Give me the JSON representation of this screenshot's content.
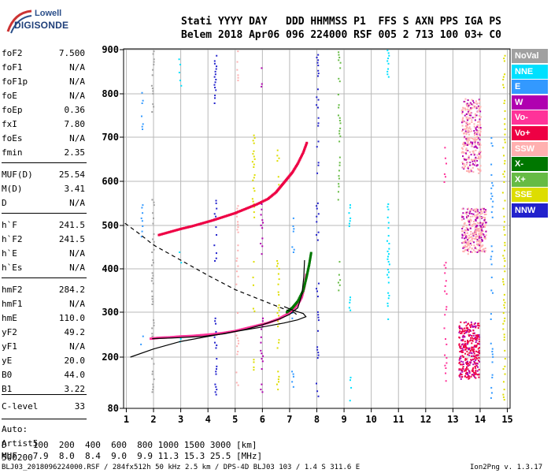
{
  "logo": {
    "line1": "Lowell",
    "line2": "DIGISONDE"
  },
  "header": {
    "line1": "Stati YYYY DAY   DDD HHMMSS P1  FFS S AXN PPS IGA PS",
    "line2": "Belem 2018 Apr06 096 224000 RSF 005 2 713 100 03+ C0"
  },
  "params": [
    {
      "k": "foF2",
      "v": "7.500"
    },
    {
      "k": "foF1",
      "v": "N/A"
    },
    {
      "k": "foF1p",
      "v": "N/A"
    },
    {
      "k": "foE",
      "v": "N/A"
    },
    {
      "k": "foEp",
      "v": "0.36"
    },
    {
      "k": "fxI",
      "v": "7.80"
    },
    {
      "k": "foEs",
      "v": "N/A"
    },
    {
      "k": "fmin",
      "v": "2.35"
    },
    {
      "k": "MUF(D)",
      "v": "25.54"
    },
    {
      "k": "M(D)",
      "v": "3.41"
    },
    {
      "k": "D",
      "v": "N/A"
    },
    {
      "k": "h`F",
      "v": "241.5"
    },
    {
      "k": "h`F2",
      "v": "241.5"
    },
    {
      "k": "h`E",
      "v": "N/A"
    },
    {
      "k": "h`Es",
      "v": "N/A"
    },
    {
      "k": "hmF2",
      "v": "284.2"
    },
    {
      "k": "hmF1",
      "v": "N/A"
    },
    {
      "k": "hmE",
      "v": "110.0"
    },
    {
      "k": "yF2",
      "v": "49.2"
    },
    {
      "k": "yF1",
      "v": "N/A"
    },
    {
      "k": "yE",
      "v": "20.0"
    },
    {
      "k": "B0",
      "v": "44.0"
    },
    {
      "k": "B1",
      "v": "3.22"
    },
    {
      "k": "C-level",
      "v": "33"
    }
  ],
  "auto": {
    "line1": "Auto:",
    "line2": "Artist5",
    "line3": "500200"
  },
  "legend": [
    {
      "label": "NoVal",
      "color": "#a0a0a0"
    },
    {
      "label": "NNE",
      "color": "#00e0ff"
    },
    {
      "label": "E",
      "color": "#3399ff"
    },
    {
      "label": "W",
      "color": "#b000b0"
    },
    {
      "label": "Vo-",
      "color": "#ff3399"
    },
    {
      "label": "Vo+",
      "color": "#ee0044"
    },
    {
      "label": "SSW",
      "color": "#ffb0b0"
    },
    {
      "label": "X-",
      "color": "#007700"
    },
    {
      "label": "X+",
      "color": "#66bb44"
    },
    {
      "label": "SSE",
      "color": "#dddd00"
    },
    {
      "label": "NNW",
      "color": "#2222cc"
    }
  ],
  "footer": {
    "d_row": "D     100  200  400  600  800 1000 1500 3000 [km]",
    "muf_row": "MUF   7.9  8.0  8.4  9.0  9.9 11.3 15.3 25.5 [MHz]",
    "file_info": "BLJ03_2018096224000.RSF / 284fx512h 50 kHz 2.5 km / DPS-4D BLJ03 103 / 1.4 S 311.6 E",
    "version": "Ion2Png v. 1.3.17"
  },
  "chart_data": {
    "type": "scatter",
    "xlim": [
      0.9,
      15.1
    ],
    "ylim": [
      80,
      900
    ],
    "x_ticks": [
      "1",
      "2",
      "3",
      "4",
      "5",
      "6",
      "7",
      "8",
      "9",
      "10",
      "11",
      "12",
      "13",
      "14",
      "15"
    ],
    "y_ticks": [
      "80",
      "200",
      "300",
      "400",
      "500",
      "600",
      "700",
      "800",
      "900"
    ],
    "grid": true,
    "traces": [
      {
        "name": "o-trace",
        "color": "#ff3399",
        "points": [
          [
            1.9,
            241
          ],
          [
            2.2,
            243
          ],
          [
            2.6,
            244
          ],
          [
            3.0,
            246
          ],
          [
            3.4,
            247
          ],
          [
            3.8,
            249
          ],
          [
            4.2,
            251
          ],
          [
            4.6,
            254
          ],
          [
            5.0,
            258
          ],
          [
            5.4,
            264
          ],
          [
            5.8,
            270
          ],
          [
            6.2,
            276
          ],
          [
            6.6,
            285
          ],
          [
            6.9,
            295
          ],
          [
            7.1,
            305
          ],
          [
            7.3,
            318
          ],
          [
            7.45,
            335
          ],
          [
            7.55,
            360
          ],
          [
            7.62,
            390
          ]
        ]
      },
      {
        "name": "x-trace",
        "color": "#007700",
        "points": [
          [
            6.9,
            300
          ],
          [
            7.1,
            310
          ],
          [
            7.3,
            325
          ],
          [
            7.5,
            350
          ],
          [
            7.62,
            380
          ],
          [
            7.72,
            410
          ],
          [
            7.8,
            440
          ]
        ]
      },
      {
        "name": "o-trace-2hop",
        "color": "#ee0044",
        "points": [
          [
            2.2,
            478
          ],
          [
            2.6,
            485
          ],
          [
            3.0,
            492
          ],
          [
            3.4,
            498
          ],
          [
            3.8,
            505
          ],
          [
            4.2,
            512
          ],
          [
            4.6,
            520
          ],
          [
            5.0,
            528
          ],
          [
            5.4,
            538
          ],
          [
            5.8,
            548
          ],
          [
            6.2,
            560
          ],
          [
            6.5,
            575
          ],
          [
            6.7,
            590
          ],
          [
            6.9,
            605
          ],
          [
            7.1,
            620
          ],
          [
            7.3,
            640
          ],
          [
            7.5,
            665
          ],
          [
            7.65,
            690
          ]
        ]
      }
    ],
    "profile_curves": [
      {
        "name": "profile-solid-upper",
        "style": "solid",
        "points": [
          [
            1.15,
            200
          ],
          [
            2.0,
            218
          ],
          [
            3.0,
            235
          ],
          [
            4.0,
            246
          ],
          [
            5.0,
            257
          ],
          [
            6.0,
            267
          ],
          [
            6.8,
            276
          ],
          [
            7.3,
            283
          ],
          [
            7.6,
            290
          ],
          [
            7.5,
            297
          ],
          [
            7.1,
            305
          ],
          [
            6.8,
            313
          ]
        ]
      },
      {
        "name": "profile-solid-lower",
        "style": "solid",
        "points": [
          [
            1.95,
            241
          ],
          [
            2.8,
            243
          ],
          [
            3.8,
            246
          ],
          [
            4.6,
            252
          ],
          [
            5.4,
            262
          ],
          [
            6.0,
            272
          ],
          [
            6.6,
            284
          ],
          [
            7.0,
            295
          ],
          [
            7.3,
            310
          ],
          [
            7.45,
            340
          ],
          [
            7.52,
            380
          ],
          [
            7.55,
            420
          ]
        ]
      },
      {
        "name": "profile-dashed",
        "style": "dashed",
        "points": [
          [
            0.95,
            505
          ],
          [
            1.5,
            480
          ],
          [
            2.0,
            455
          ],
          [
            3.0,
            420
          ],
          [
            4.0,
            385
          ],
          [
            5.0,
            352
          ],
          [
            5.8,
            332
          ],
          [
            6.4,
            317
          ],
          [
            6.9,
            305
          ],
          [
            7.2,
            298
          ],
          [
            7.3,
            292
          ]
        ]
      }
    ],
    "scattered_columns": [
      {
        "x": 1.55,
        "y": [
          [
            470,
            560
          ],
          [
            720,
            820
          ],
          [
            230,
            300
          ]
        ],
        "color": "#3399ff"
      },
      {
        "x": 1.95,
        "y": [
          [
            120,
            200
          ],
          [
            230,
            560
          ],
          [
            760,
            900
          ]
        ],
        "color": "#a0a0a0"
      },
      {
        "x": 2.95,
        "y": [
          [
            380,
            440
          ],
          [
            230,
            270
          ],
          [
            820,
            900
          ]
        ],
        "color": "#00e0ff"
      },
      {
        "x": 4.25,
        "y": [
          [
            90,
            300
          ],
          [
            420,
            560
          ],
          [
            780,
            900
          ]
        ],
        "color": "#2222cc"
      },
      {
        "x": 5.05,
        "y": [
          [
            130,
            260
          ],
          [
            300,
            560
          ],
          [
            820,
            900
          ]
        ],
        "color": "#ffb0b0"
      },
      {
        "x": 5.65,
        "y": [
          [
            160,
            200
          ],
          [
            280,
            420
          ],
          [
            520,
            740
          ]
        ],
        "color": "#dddd00"
      },
      {
        "x": 5.95,
        "y": [
          [
            120,
            300
          ],
          [
            430,
            560
          ],
          [
            800,
            870
          ]
        ],
        "color": "#b000b0"
      },
      {
        "x": 6.55,
        "y": [
          [
            120,
            420
          ],
          [
            540,
            700
          ]
        ],
        "color": "#dddd00"
      },
      {
        "x": 7.1,
        "y": [
          [
            120,
            200
          ],
          [
            270,
            300
          ],
          [
            440,
            520
          ]
        ],
        "color": "#3399ff"
      },
      {
        "x": 8.0,
        "y": [
          [
            110,
            380
          ],
          [
            450,
            560
          ],
          [
            620,
            900
          ]
        ],
        "color": "#2222cc"
      },
      {
        "x": 8.8,
        "y": [
          [
            340,
            420
          ],
          [
            560,
            900
          ]
        ],
        "color": "#66bb44"
      },
      {
        "x": 9.2,
        "y": [
          [
            100,
            200
          ],
          [
            300,
            360
          ],
          [
            500,
            560
          ]
        ],
        "color": "#00e0ff"
      },
      {
        "x": 10.6,
        "y": [
          [
            280,
            560
          ],
          [
            840,
            900
          ]
        ],
        "color": "#00e0ff"
      },
      {
        "x": 12.7,
        "y": [
          [
            140,
            420
          ],
          [
            600,
            680
          ]
        ],
        "color": "#ff3399"
      },
      {
        "x": 13.5,
        "y": [
          [
            150,
            290
          ],
          [
            430,
            540
          ],
          [
            640,
            800
          ]
        ],
        "color": "#ffb0b0"
      },
      {
        "x": 14.4,
        "y": [
          [
            100,
            300
          ],
          [
            340,
            460
          ],
          [
            520,
            700
          ]
        ],
        "color": "#3399ff"
      },
      {
        "x": 14.85,
        "y": [
          [
            90,
            900
          ]
        ],
        "color": "#dddd00"
      }
    ],
    "blobs": [
      {
        "x": [
          13.2,
          13.95
        ],
        "y": [
          150,
          280
        ],
        "color": "#ee0044"
      },
      {
        "x": [
          13.3,
          14.0
        ],
        "y": [
          620,
          790
        ],
        "color": "#ffb0b0"
      },
      {
        "x": [
          13.3,
          14.2
        ],
        "y": [
          440,
          540
        ],
        "color": "#ffb0b0"
      }
    ]
  }
}
